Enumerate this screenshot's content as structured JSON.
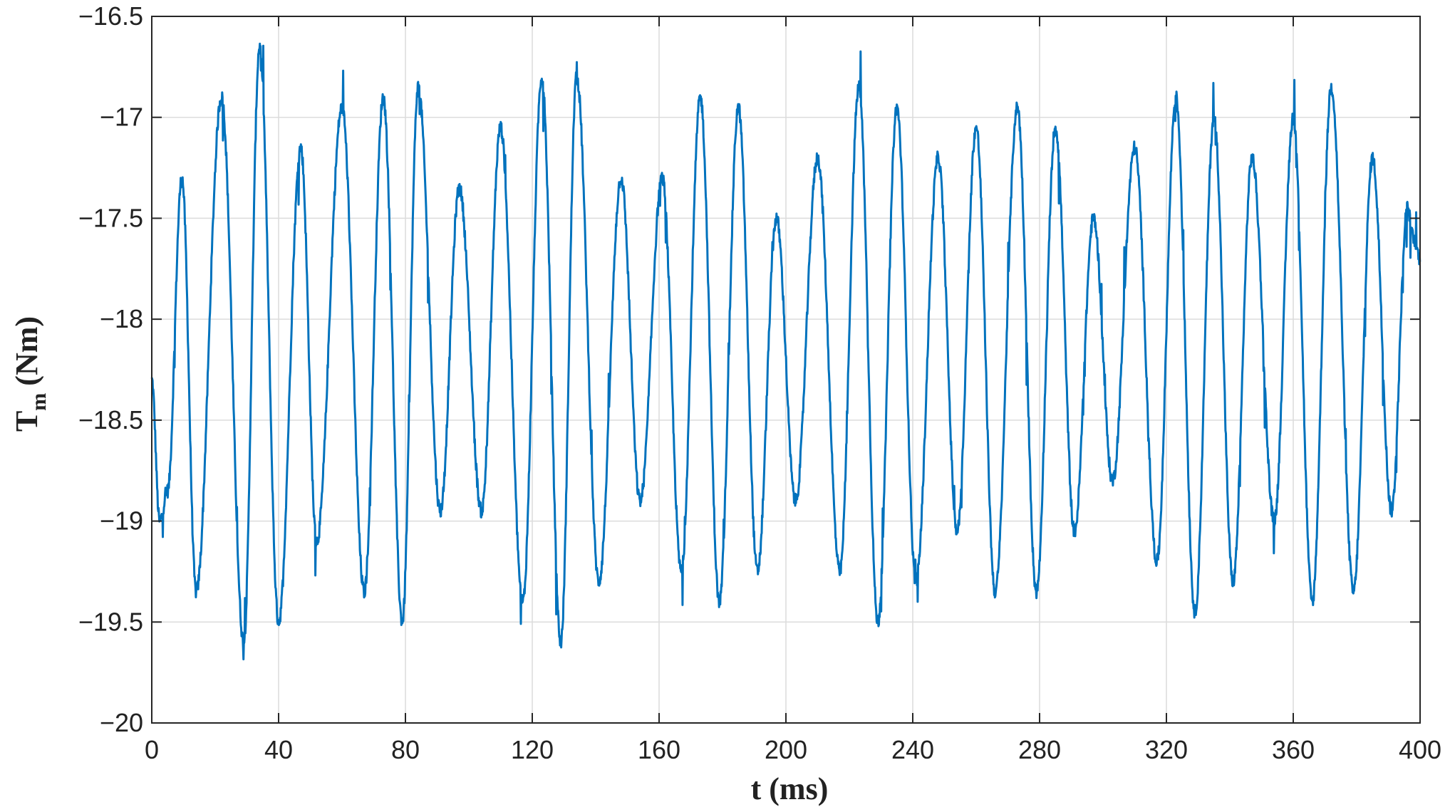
{
  "chart_data": {
    "type": "line",
    "xlabel": "t (ms)",
    "ylabel": {
      "main": "T",
      "sub": "m",
      "unit": "(Nm)"
    },
    "xlim": [
      0,
      400
    ],
    "ylim": [
      -20,
      -16.5
    ],
    "xticks": [
      0,
      40,
      80,
      120,
      160,
      200,
      240,
      280,
      320,
      360,
      400
    ],
    "xtick_labels": [
      "0",
      "40",
      "80",
      "120",
      "160",
      "200",
      "240",
      "280",
      "320",
      "360",
      "400"
    ],
    "yticks": [
      -20,
      -19.5,
      -19,
      -18.5,
      -18,
      -17.5,
      -17,
      -16.5
    ],
    "ytick_labels": [
      "−20",
      "−19.5",
      "−19",
      "−18.5",
      "−18",
      "−17.5",
      "−17",
      "−16.5"
    ],
    "grid": true,
    "legend": "none",
    "series": [
      {
        "color": "#0072BD",
        "extrema": [
          [
            0,
            -18.3
          ],
          [
            2.5,
            -19.0
          ],
          [
            5,
            -18.85
          ],
          [
            9.5,
            -17.3
          ],
          [
            14,
            -19.35
          ],
          [
            22,
            -16.9
          ],
          [
            29,
            -19.6
          ],
          [
            34,
            -16.65
          ],
          [
            40,
            -19.5
          ],
          [
            47,
            -17.15
          ],
          [
            52,
            -19.1
          ],
          [
            60,
            -16.95
          ],
          [
            67,
            -19.35
          ],
          [
            73,
            -16.9
          ],
          [
            79,
            -19.5
          ],
          [
            84,
            -16.85
          ],
          [
            91,
            -18.95
          ],
          [
            97,
            -17.35
          ],
          [
            104,
            -18.95
          ],
          [
            110,
            -17.05
          ],
          [
            117,
            -19.4
          ],
          [
            123,
            -16.8
          ],
          [
            129,
            -19.6
          ],
          [
            134,
            -16.8
          ],
          [
            141,
            -19.3
          ],
          [
            148,
            -17.3
          ],
          [
            154,
            -18.9
          ],
          [
            161,
            -17.3
          ],
          [
            167,
            -19.25
          ],
          [
            173,
            -16.9
          ],
          [
            179,
            -19.4
          ],
          [
            185,
            -16.95
          ],
          [
            191,
            -19.25
          ],
          [
            197,
            -17.5
          ],
          [
            203,
            -18.9
          ],
          [
            210,
            -17.2
          ],
          [
            217,
            -19.25
          ],
          [
            223,
            -16.85
          ],
          [
            229,
            -19.5
          ],
          [
            235,
            -16.95
          ],
          [
            241,
            -19.3
          ],
          [
            248,
            -17.2
          ],
          [
            254,
            -19.05
          ],
          [
            260,
            -17.05
          ],
          [
            266,
            -19.35
          ],
          [
            273,
            -16.95
          ],
          [
            279,
            -19.35
          ],
          [
            285,
            -17.05
          ],
          [
            291,
            -19.05
          ],
          [
            297,
            -17.5
          ],
          [
            303,
            -18.8
          ],
          [
            310,
            -17.15
          ],
          [
            317,
            -19.2
          ],
          [
            323,
            -16.9
          ],
          [
            329,
            -19.45
          ],
          [
            335,
            -17.0
          ],
          [
            341,
            -19.3
          ],
          [
            347,
            -17.2
          ],
          [
            354,
            -19.0
          ],
          [
            360,
            -17.0
          ],
          [
            366,
            -19.4
          ],
          [
            372,
            -16.85
          ],
          [
            379,
            -19.35
          ],
          [
            385,
            -17.2
          ],
          [
            391,
            -18.95
          ],
          [
            396,
            -17.45
          ],
          [
            398,
            -17.6
          ],
          [
            400,
            -17.7
          ]
        ]
      }
    ]
  }
}
